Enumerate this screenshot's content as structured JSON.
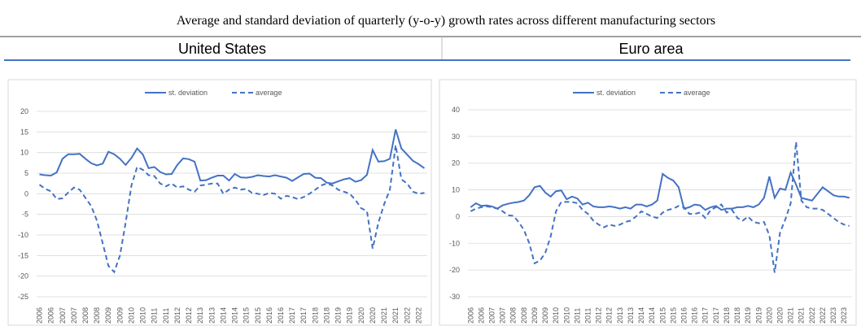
{
  "title": "Average and standard deviation of quarterly (y-o-y) growth rates across different manufacturing sectors",
  "headers": [
    "United States",
    "Euro area"
  ],
  "chart_data": [
    {
      "type": "line",
      "color": "#4472c4",
      "grid": true,
      "legend": "top",
      "categories": [
        "2006",
        null,
        "2006",
        null,
        "2007",
        null,
        "2007",
        null,
        "2008",
        null,
        "2008",
        null,
        "2009",
        null,
        "2009",
        null,
        "2010",
        null,
        "2010",
        null,
        "2011",
        null,
        "2011",
        null,
        "2012",
        null,
        "2012",
        null,
        "2013",
        null,
        "2013",
        null,
        "2014",
        null,
        "2014",
        null,
        "2015",
        null,
        "2015",
        null,
        "2016",
        null,
        "2016",
        null,
        "2017",
        null,
        "2017",
        null,
        "2018",
        null,
        "2018",
        null,
        "2019",
        null,
        "2019",
        null,
        "2020",
        null,
        "2020",
        null,
        "2021",
        null,
        "2021",
        null,
        "2022",
        null,
        "2022",
        null
      ],
      "ylim": [
        -25,
        20
      ],
      "yticks": [
        -25,
        -20,
        -15,
        -10,
        -5,
        0,
        5,
        10,
        15,
        20
      ],
      "series": [
        {
          "name": "st. deviation",
          "color": "#4472c4",
          "dashed": false,
          "values": [
            4.7,
            4.5,
            4.4,
            5.2,
            8.5,
            9.6,
            9.6,
            9.7,
            8.5,
            7.4,
            6.9,
            7.3,
            10.2,
            9.6,
            8.5,
            7.0,
            8.7,
            11.0,
            9.5,
            6.2,
            6.5,
            5.3,
            4.7,
            4.8,
            7.0,
            8.6,
            8.4,
            7.8,
            3.2,
            3.3,
            3.9,
            4.4,
            4.4,
            3.2,
            4.8,
            4.0,
            3.9,
            4.1,
            4.5,
            4.3,
            4.2,
            4.5,
            4.2,
            3.9,
            3.1,
            4.0,
            4.8,
            4.9,
            3.9,
            3.8,
            2.7,
            2.5,
            3.0,
            3.5,
            3.8,
            2.9,
            3.3,
            4.6,
            10.6,
            7.8,
            7.9,
            8.5,
            15.6,
            11.0,
            9.5,
            8.0,
            7.2,
            6.2
          ]
        },
        {
          "name": "average",
          "color": "#4472c4",
          "dashed": true,
          "values": [
            2.2,
            1.2,
            0.6,
            -1.3,
            -1.1,
            0.3,
            1.5,
            1.0,
            -1.0,
            -3.0,
            -6.5,
            -12.0,
            -17.5,
            -19.0,
            -15.0,
            -7.0,
            2.0,
            6.5,
            5.8,
            4.5,
            4.3,
            2.5,
            1.8,
            2.5,
            1.5,
            1.8,
            1.0,
            0.5,
            2.0,
            2.2,
            2.5,
            2.5,
            0.0,
            1.0,
            1.5,
            1.0,
            1.2,
            0.2,
            0.0,
            -0.3,
            0.2,
            0.0,
            -1.2,
            -0.5,
            -0.8,
            -1.3,
            -0.8,
            0.0,
            1.0,
            2.0,
            2.5,
            2.0,
            1.0,
            0.5,
            0.0,
            -1.5,
            -3.5,
            -4.2,
            -13.3,
            -7.0,
            -2.5,
            1.0,
            11.8,
            3.5,
            2.5,
            0.5,
            0.0,
            0.2
          ]
        }
      ]
    },
    {
      "type": "line",
      "color": "#4472c4",
      "grid": true,
      "legend": "top",
      "categories": [
        "2006",
        null,
        "2006",
        null,
        "2007",
        null,
        "2007",
        null,
        "2008",
        null,
        "2008",
        null,
        "2009",
        null,
        "2009",
        null,
        "2010",
        null,
        "2010",
        null,
        "2011",
        null,
        "2011",
        null,
        "2012",
        null,
        "2012",
        null,
        "2013",
        null,
        "2013",
        null,
        "2014",
        null,
        "2014",
        null,
        "2015",
        null,
        "2015",
        null,
        "2016",
        null,
        "2016",
        null,
        "2017",
        null,
        "2017",
        null,
        "2018",
        null,
        "2018",
        null,
        "2019",
        null,
        "2019",
        null,
        "2020",
        null,
        "2020",
        null,
        "2021",
        null,
        "2021",
        null,
        "2022",
        null,
        "2022",
        null,
        "2023",
        null,
        "2023",
        null
      ],
      "ylim": [
        -30,
        40
      ],
      "yticks": [
        -30,
        -20,
        -10,
        0,
        10,
        20,
        30,
        40
      ],
      "series": [
        {
          "name": "st. deviation",
          "color": "#4472c4",
          "dashed": false,
          "values": [
            3.5,
            5.0,
            4.0,
            4.2,
            3.8,
            3.0,
            4.2,
            4.8,
            5.2,
            5.5,
            6.0,
            8.0,
            11.0,
            11.5,
            9.0,
            7.5,
            9.5,
            9.8,
            6.5,
            7.5,
            6.8,
            4.5,
            5.2,
            3.8,
            3.5,
            3.5,
            3.8,
            3.5,
            3.0,
            3.5,
            3.0,
            4.5,
            4.5,
            3.8,
            4.5,
            6.0,
            16.0,
            14.5,
            13.5,
            11.0,
            3.0,
            3.5,
            4.5,
            4.2,
            2.5,
            3.5,
            4.0,
            2.5,
            3.0,
            3.0,
            3.5,
            3.5,
            4.0,
            3.5,
            4.5,
            7.0,
            15.0,
            7.0,
            10.5,
            10.0,
            16.5,
            12.0,
            7.0,
            6.5,
            6.0,
            8.5,
            11.0,
            9.5,
            8.0,
            7.5,
            7.5,
            7.0
          ]
        },
        {
          "name": "average",
          "color": "#4472c4",
          "dashed": true,
          "values": [
            2.0,
            3.0,
            3.5,
            3.8,
            3.5,
            3.0,
            2.0,
            0.5,
            0.3,
            -2.0,
            -5.0,
            -10.0,
            -17.5,
            -16.5,
            -13.5,
            -7.5,
            2.0,
            5.5,
            5.5,
            5.5,
            5.0,
            2.5,
            1.0,
            -1.5,
            -3.0,
            -4.0,
            -3.0,
            -3.5,
            -3.0,
            -2.0,
            -1.5,
            0.0,
            2.0,
            1.0,
            0.0,
            -0.5,
            1.5,
            2.5,
            3.0,
            4.0,
            3.5,
            1.0,
            1.0,
            1.5,
            -0.5,
            2.5,
            3.5,
            4.5,
            1.5,
            2.5,
            -0.5,
            -1.5,
            0.0,
            -2.0,
            -2.5,
            -2.0,
            -7.0,
            -21.0,
            -6.0,
            -1.0,
            5.0,
            28.0,
            6.0,
            3.5,
            3.0,
            3.0,
            2.5,
            1.0,
            -0.5,
            -2.0,
            -3.0,
            -3.5
          ]
        }
      ]
    }
  ]
}
